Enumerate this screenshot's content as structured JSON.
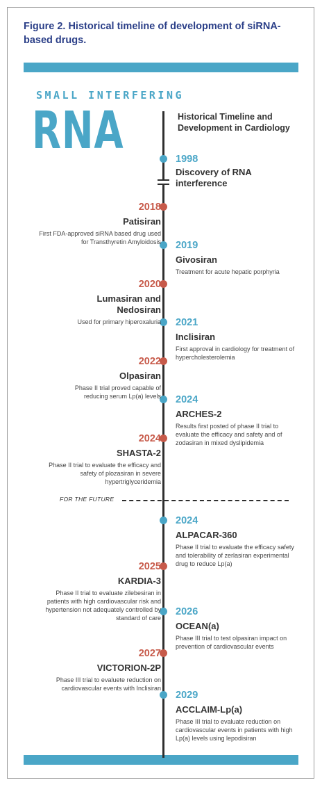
{
  "caption": "Figure 2.    Historical timeline of development of siRNA-based drugs.",
  "logo": {
    "top": "SMALL INTERFERING",
    "main": "RNA"
  },
  "header": "Historical Timeline and Development in Cardiology",
  "future_label": "FOR THE FUTURE",
  "colors": {
    "accent_blue": "#4aa6c7",
    "accent_red": "#c75a4a",
    "title_navy": "#2b3f88"
  },
  "events": [
    {
      "year": "1998",
      "name": "Discovery of RNA interference",
      "desc": ""
    },
    {
      "year": "2018",
      "name": "Patisiran",
      "desc": "First FDA-approved siRNA based drug used for Transthyretin Amyloidosis"
    },
    {
      "year": "2019",
      "name": "Givosiran",
      "desc": "Treatment for acute hepatic porphyria"
    },
    {
      "year": "2020",
      "name": "Lumasiran and Nedosiran",
      "desc": "Used for primary hiperoxaluria"
    },
    {
      "year": "2021",
      "name": "Inclisiran",
      "desc": "First approval in cardiology for treatment of hypercholesterolemia"
    },
    {
      "year": "2022",
      "name": "Olpasiran",
      "desc": "Phase II trial proved capable of reducing serum Lp(a) levels"
    },
    {
      "year": "2024",
      "name": "ARCHES-2",
      "desc": "Results first posted of phase II trial to evaluate the efficacy and safety and of zodasiran in mixed dyslipidemia"
    },
    {
      "year": "2024",
      "name": "SHASTA-2",
      "desc": "Phase II trial to evaluate the efficacy and safety of plozasiran in severe hypertriglyceridemia"
    },
    {
      "year": "2024",
      "name": "ALPACAR-360",
      "desc": "Phase II trial to evaluate the efficacy safety and tolerability of zerlasiran experimental drug to reduce Lp(a)"
    },
    {
      "year": "2025",
      "name": "KARDIA-3",
      "desc": "Phase II trial to evaluate zilebesiran in patients with high cardiovascular risk and hypertension not adequately controlled by standard of care"
    },
    {
      "year": "2026",
      "name": "OCEAN(a)",
      "desc": "Phase III trial to test olpasiran impact on prevention of cardiovascular events"
    },
    {
      "year": "2027",
      "name": "VICTORION-2P",
      "desc": "Phase III trial to evaluete reduction on cardiovascular events with Inclisiran"
    },
    {
      "year": "2029",
      "name": "ACCLAIM-Lp(a)",
      "desc": "Phase III trial to evaluate reduction on cardiovascular events in patients with high Lp(a) levels using lepodisiran"
    }
  ]
}
